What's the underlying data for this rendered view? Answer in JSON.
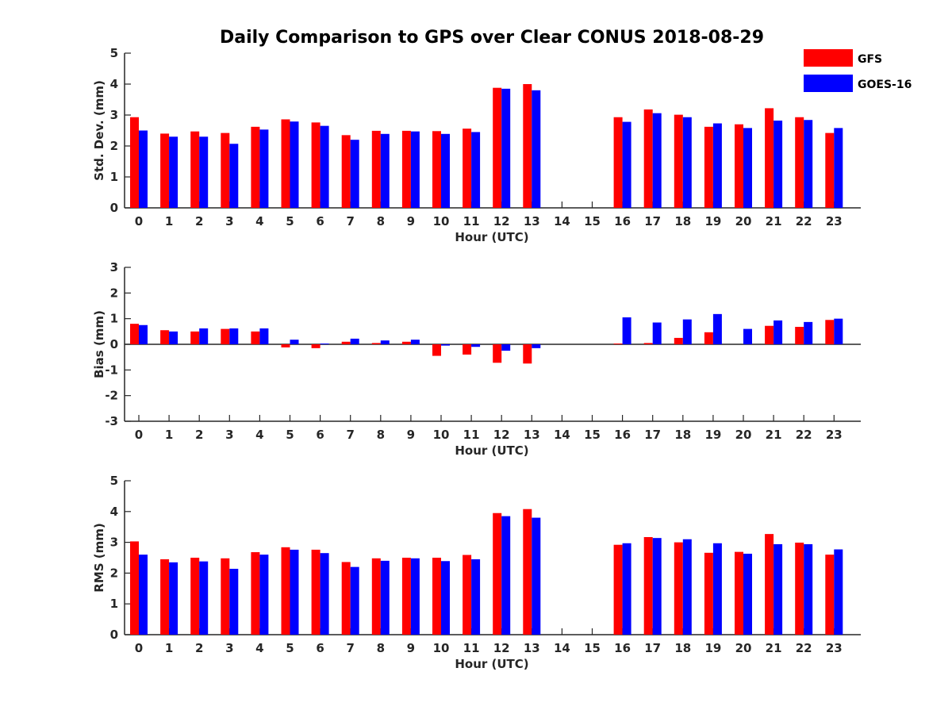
{
  "title": "Daily Comparison to GPS over Clear CONUS 2018-08-29",
  "colors": {
    "gfs": "#ff0000",
    "goes": "#0000ff",
    "axis": "#262626"
  },
  "legend": {
    "position": "top-right",
    "items": [
      "GFS",
      "GOES-16"
    ]
  },
  "chart_data": [
    {
      "type": "bar",
      "title": "Daily Comparison to GPS over Clear CONUS 2018-08-29",
      "xlabel": "Hour (UTC)",
      "ylabel": "Std. Dev. (mm)",
      "ylim": [
        0,
        5
      ],
      "yticks": [
        "0",
        "1",
        "2",
        "3",
        "4",
        "5"
      ],
      "categories": [
        "0",
        "1",
        "2",
        "3",
        "4",
        "5",
        "6",
        "7",
        "8",
        "9",
        "10",
        "11",
        "12",
        "13",
        "14",
        "15",
        "16",
        "17",
        "18",
        "19",
        "20",
        "21",
        "22",
        "23"
      ],
      "series": [
        {
          "name": "GFS",
          "values": [
            2.93,
            2.4,
            2.47,
            2.42,
            2.62,
            2.86,
            2.76,
            2.35,
            2.49,
            2.49,
            2.48,
            2.56,
            3.88,
            4.0,
            null,
            null,
            2.93,
            3.18,
            3.01,
            2.62,
            2.7,
            3.22,
            2.93,
            2.42
          ]
        },
        {
          "name": "GOES-16",
          "values": [
            2.5,
            2.3,
            2.3,
            2.07,
            2.53,
            2.79,
            2.65,
            2.2,
            2.39,
            2.47,
            2.39,
            2.45,
            3.85,
            3.8,
            null,
            null,
            2.78,
            3.06,
            2.93,
            2.73,
            2.58,
            2.82,
            2.84,
            2.58
          ]
        }
      ]
    },
    {
      "type": "bar",
      "xlabel": "Hour (UTC)",
      "ylabel": "Bias (mm)",
      "ylim": [
        -3,
        3
      ],
      "yticks": [
        "-3",
        "-2",
        "-1",
        "0",
        "1",
        "2",
        "3"
      ],
      "categories": [
        "0",
        "1",
        "2",
        "3",
        "4",
        "5",
        "6",
        "7",
        "8",
        "9",
        "10",
        "11",
        "12",
        "13",
        "14",
        "15",
        "16",
        "17",
        "18",
        "19",
        "20",
        "21",
        "22",
        "23"
      ],
      "series": [
        {
          "name": "GFS",
          "values": [
            0.8,
            0.55,
            0.5,
            0.6,
            0.5,
            -0.12,
            -0.15,
            0.1,
            0.05,
            0.1,
            -0.45,
            -0.4,
            -0.72,
            -0.75,
            null,
            null,
            0.03,
            0.05,
            0.25,
            0.47,
            0.0,
            0.72,
            0.68,
            0.95
          ]
        },
        {
          "name": "GOES-16",
          "values": [
            0.75,
            0.5,
            0.62,
            0.62,
            0.62,
            0.18,
            0.03,
            0.22,
            0.15,
            0.18,
            -0.05,
            -0.1,
            -0.25,
            -0.15,
            null,
            null,
            1.05,
            0.85,
            0.97,
            1.18,
            0.6,
            0.93,
            0.87,
            1.0
          ]
        }
      ]
    },
    {
      "type": "bar",
      "xlabel": "Hour (UTC)",
      "ylabel": "RMS (mm)",
      "ylim": [
        0,
        5
      ],
      "yticks": [
        "0",
        "1",
        "2",
        "3",
        "4",
        "5"
      ],
      "categories": [
        "0",
        "1",
        "2",
        "3",
        "4",
        "5",
        "6",
        "7",
        "8",
        "9",
        "10",
        "11",
        "12",
        "13",
        "14",
        "15",
        "16",
        "17",
        "18",
        "19",
        "20",
        "21",
        "22",
        "23"
      ],
      "series": [
        {
          "name": "GFS",
          "values": [
            3.03,
            2.45,
            2.5,
            2.48,
            2.68,
            2.84,
            2.76,
            2.36,
            2.48,
            2.5,
            2.5,
            2.59,
            3.95,
            4.08,
            null,
            null,
            2.92,
            3.17,
            3.0,
            2.66,
            2.69,
            3.27,
            2.99,
            2.6
          ]
        },
        {
          "name": "GOES-16",
          "values": [
            2.6,
            2.35,
            2.38,
            2.14,
            2.6,
            2.76,
            2.65,
            2.2,
            2.4,
            2.48,
            2.39,
            2.45,
            3.85,
            3.8,
            null,
            null,
            2.97,
            3.14,
            3.1,
            2.97,
            2.63,
            2.94,
            2.94,
            2.77
          ]
        }
      ]
    }
  ]
}
